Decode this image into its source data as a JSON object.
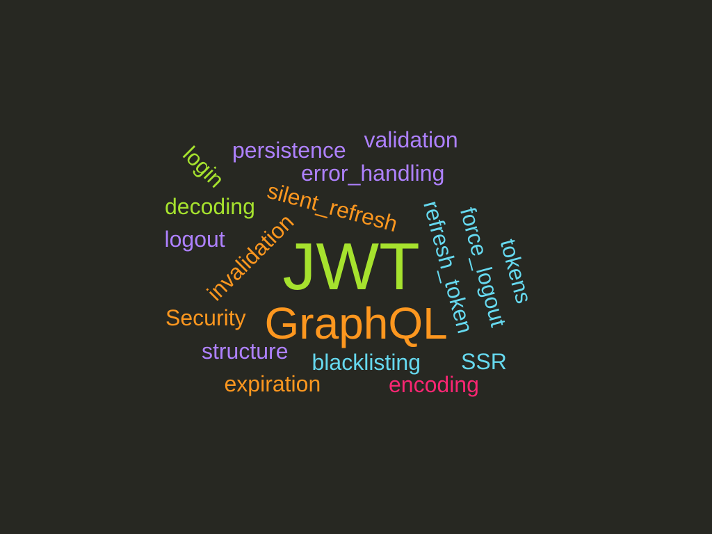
{
  "word_cloud": {
    "words": [
      {
        "id": "jwt",
        "text": "JWT",
        "color": "#a6e22e"
      },
      {
        "id": "graphql",
        "text": "GraphQL",
        "color": "#fd971f"
      },
      {
        "id": "validation",
        "text": "validation",
        "color": "#ae81ff"
      },
      {
        "id": "persistence",
        "text": "persistence",
        "color": "#ae81ff"
      },
      {
        "id": "login",
        "text": "login",
        "color": "#a6e22e"
      },
      {
        "id": "error-handling",
        "text": "error_handling",
        "color": "#ae81ff"
      },
      {
        "id": "silent-refresh",
        "text": "silent_refresh",
        "color": "#fd971f"
      },
      {
        "id": "decoding",
        "text": "decoding",
        "color": "#a6e22e"
      },
      {
        "id": "logout",
        "text": "logout",
        "color": "#ae81ff"
      },
      {
        "id": "invalidation",
        "text": "invalidation",
        "color": "#fd971f"
      },
      {
        "id": "refresh-token",
        "text": "refresh_token",
        "color": "#66d9ef"
      },
      {
        "id": "force-logout",
        "text": "force_logout",
        "color": "#66d9ef"
      },
      {
        "id": "tokens",
        "text": "tokens",
        "color": "#66d9ef"
      },
      {
        "id": "security",
        "text": "Security",
        "color": "#fd971f"
      },
      {
        "id": "structure",
        "text": "structure",
        "color": "#ae81ff"
      },
      {
        "id": "blacklisting",
        "text": "blacklisting",
        "color": "#66d9ef"
      },
      {
        "id": "ssr",
        "text": "SSR",
        "color": "#66d9ef"
      },
      {
        "id": "expiration",
        "text": "expiration",
        "color": "#fd971f"
      },
      {
        "id": "encoding",
        "text": "encoding",
        "color": "#f92672"
      }
    ]
  }
}
